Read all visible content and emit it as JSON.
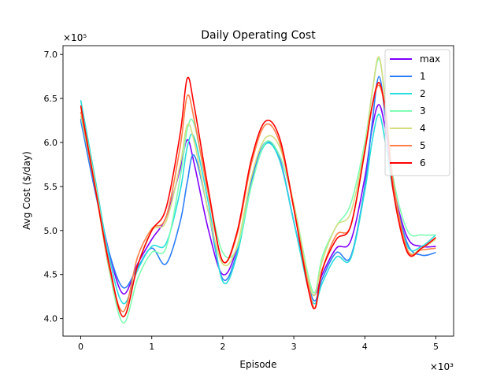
{
  "chart_data": {
    "type": "line",
    "title": "Daily Operating Cost",
    "xlabel": "Episode",
    "ylabel": "Avg Cost ($/day)",
    "x_multiplier_label": "×10³",
    "y_multiplier_label": "×10⁵",
    "xlim": [
      -250,
      5250
    ],
    "ylim": [
      3.8,
      7.1
    ],
    "x_ticks": [
      0,
      1000,
      2000,
      3000,
      4000,
      5000
    ],
    "x_tick_labels": [
      "0",
      "1",
      "2",
      "3",
      "4",
      "5"
    ],
    "y_ticks": [
      4.0,
      4.5,
      5.0,
      5.5,
      6.0,
      6.5,
      7.0
    ],
    "y_tick_labels": [
      "4.0",
      "4.5",
      "5.0",
      "5.5",
      "6.0",
      "6.5",
      "7.0"
    ],
    "grid": false,
    "legend_position": "upper-right",
    "x": [
      0,
      200,
      400,
      600,
      800,
      1000,
      1200,
      1400,
      1500,
      1600,
      1800,
      2000,
      2200,
      2400,
      2600,
      2800,
      3000,
      3200,
      3300,
      3400,
      3600,
      3800,
      4000,
      4100,
      4200,
      4300,
      4400,
      4600,
      4800,
      5000
    ],
    "series": [
      {
        "name": "max",
        "color": "#8000ff",
        "values": [
          6.27,
          5.5,
          4.75,
          4.28,
          4.62,
          4.9,
          5.15,
          5.7,
          6.03,
          5.75,
          5.0,
          4.5,
          4.8,
          5.55,
          6.0,
          5.82,
          5.1,
          4.4,
          4.27,
          4.5,
          4.8,
          4.88,
          5.6,
          6.15,
          6.43,
          6.1,
          5.5,
          4.92,
          4.82,
          4.82
        ]
      },
      {
        "name": "1",
        "color": "#2c7ef7",
        "values": [
          6.25,
          5.45,
          4.75,
          4.35,
          4.58,
          4.8,
          4.62,
          5.1,
          5.55,
          5.85,
          5.2,
          4.45,
          4.75,
          5.55,
          6.0,
          5.8,
          5.1,
          4.4,
          4.2,
          4.45,
          4.75,
          4.7,
          5.5,
          6.2,
          6.75,
          6.2,
          5.5,
          4.85,
          4.72,
          4.75
        ]
      },
      {
        "name": "2",
        "color": "#2adddd",
        "values": [
          6.48,
          5.6,
          4.7,
          4.17,
          4.55,
          4.82,
          4.85,
          5.45,
          5.95,
          6.05,
          5.3,
          4.42,
          4.72,
          5.5,
          5.98,
          5.8,
          5.1,
          4.35,
          4.17,
          4.4,
          4.7,
          4.68,
          5.45,
          6.0,
          6.32,
          5.95,
          5.45,
          4.82,
          4.82,
          4.95
        ]
      },
      {
        "name": "3",
        "color": "#80ffb4",
        "values": [
          6.3,
          5.5,
          4.55,
          3.95,
          4.45,
          4.75,
          4.8,
          5.6,
          6.15,
          6.2,
          5.4,
          4.75,
          4.8,
          5.5,
          6.0,
          5.85,
          5.3,
          4.5,
          4.3,
          4.7,
          5.05,
          5.3,
          6.0,
          6.55,
          6.95,
          6.4,
          5.6,
          5.0,
          4.95,
          4.95
        ]
      },
      {
        "name": "4",
        "color": "#d4dd80",
        "values": [
          6.4,
          5.55,
          4.6,
          4.02,
          4.6,
          5.0,
          5.1,
          5.75,
          6.2,
          6.0,
          5.2,
          4.62,
          4.82,
          5.6,
          6.05,
          5.95,
          5.3,
          4.45,
          4.27,
          4.65,
          5.05,
          5.2,
          5.95,
          6.55,
          6.97,
          6.35,
          5.45,
          4.78,
          4.8,
          4.9
        ]
      },
      {
        "name": "5",
        "color": "#ff8048",
        "values": [
          6.35,
          5.5,
          4.58,
          4.08,
          4.7,
          5.02,
          5.15,
          5.95,
          6.53,
          6.25,
          5.4,
          4.65,
          4.95,
          5.75,
          6.2,
          6.0,
          5.25,
          4.4,
          4.12,
          4.55,
          4.95,
          5.05,
          5.9,
          6.4,
          6.65,
          6.3,
          5.55,
          4.78,
          4.78,
          4.8
        ]
      },
      {
        "name": "6",
        "color": "#ff0000",
        "values": [
          6.42,
          5.5,
          4.62,
          4.02,
          4.6,
          5.0,
          5.25,
          6.1,
          6.73,
          6.4,
          5.45,
          4.65,
          4.98,
          5.8,
          6.24,
          6.05,
          5.25,
          4.35,
          4.12,
          4.55,
          4.9,
          5.05,
          5.9,
          6.4,
          6.68,
          6.3,
          5.45,
          4.75,
          4.8,
          4.92
        ]
      }
    ]
  }
}
